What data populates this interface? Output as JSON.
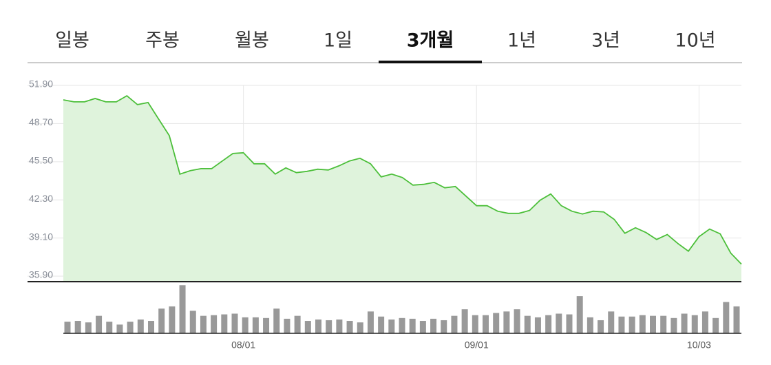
{
  "tabs": {
    "items": [
      "일봉",
      "주봉",
      "월봉",
      "1일",
      "3개월",
      "1년",
      "3년",
      "10년"
    ],
    "active": 4
  },
  "chart_data": {
    "type": "area",
    "color": "#4cbf3a",
    "fill": "#dff3dc",
    "categories": [
      null,
      null,
      null,
      null,
      null,
      null,
      null,
      null,
      null,
      null,
      null,
      null,
      null,
      null,
      null,
      null,
      null,
      "08/01",
      null,
      null,
      null,
      null,
      null,
      null,
      null,
      null,
      null,
      null,
      null,
      null,
      null,
      null,
      null,
      null,
      null,
      null,
      null,
      null,
      null,
      "09/01",
      null,
      null,
      null,
      null,
      null,
      null,
      null,
      null,
      null,
      null,
      null,
      null,
      null,
      null,
      null,
      null,
      null,
      null,
      null,
      null,
      "10/03",
      null,
      null,
      null,
      null
    ],
    "values": [
      50.69,
      50.52,
      50.52,
      50.8,
      50.52,
      50.52,
      51.03,
      50.29,
      50.46,
      49.07,
      47.69,
      44.46,
      44.75,
      44.92,
      44.92,
      45.56,
      46.19,
      46.25,
      45.33,
      45.33,
      44.46,
      44.98,
      44.58,
      44.69,
      44.87,
      44.81,
      45.15,
      45.56,
      45.79,
      45.33,
      44.23,
      44.46,
      44.17,
      43.54,
      43.6,
      43.77,
      43.31,
      43.42,
      42.62,
      41.81,
      41.81,
      41.35,
      41.17,
      41.17,
      41.41,
      42.27,
      42.79,
      41.81,
      41.35,
      41.12,
      41.35,
      41.29,
      40.66,
      39.5,
      39.96,
      39.56,
      38.98,
      39.39,
      38.64,
      38.0,
      39.21,
      39.85,
      39.45,
      37.83,
      36.91
    ],
    "ylim": [
      35.44,
      51.9
    ],
    "yticks": [
      {
        "value": 51.9,
        "label": "51.90"
      },
      {
        "value": 48.7,
        "label": "48.70"
      },
      {
        "value": 45.5,
        "label": "45.50"
      },
      {
        "value": 42.3,
        "label": "42.30"
      },
      {
        "value": 39.1,
        "label": "39.10"
      },
      {
        "value": 35.9,
        "label": "35.90"
      }
    ],
    "volume": {
      "color": "#999999",
      "max": 70,
      "values": [
        16,
        17,
        15,
        24,
        16,
        12,
        16,
        19,
        17,
        34,
        37,
        66,
        31,
        24,
        25,
        26,
        27,
        22,
        22,
        21,
        34,
        20,
        24,
        17,
        19,
        18,
        19,
        17,
        15,
        30,
        23,
        19,
        21,
        20,
        17,
        20,
        18,
        24,
        33,
        25,
        25,
        28,
        30,
        33,
        24,
        22,
        25,
        27,
        26,
        51,
        22,
        18,
        30,
        23,
        23,
        25,
        24,
        24,
        21,
        27,
        25,
        30,
        21,
        43,
        37
      ]
    }
  }
}
